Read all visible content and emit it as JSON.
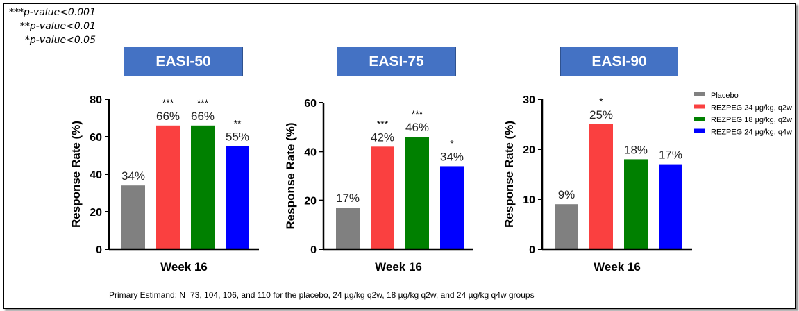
{
  "pvalue_notes": [
    "***p-value<0.001",
    "**p-value<0.01",
    "*p-value<0.05"
  ],
  "footnote": "Primary Estimand: N=73, 104, 106, and 110 for the placebo, 24 µg/kg q2w, 18 µg/kg q2w, and 24 µg/kg q4w groups",
  "legend": {
    "placement": "right",
    "items": [
      {
        "label": "Placebo",
        "color": "#808080"
      },
      {
        "label": "REZPEG 24 µg/kg, q2w",
        "color": "#fa4040"
      },
      {
        "label": "REZPEG 18 µg/kg, q2w",
        "color": "#008000"
      },
      {
        "label": "REZPEG 24 µg/kg, q4w",
        "color": "#0000ff"
      }
    ]
  },
  "chart_data": [
    {
      "type": "bar",
      "title": "EASI-50",
      "xlabel": "Week 16",
      "ylabel": "Response Rate (%)",
      "ylim": [
        0,
        80
      ],
      "yticks": [
        0,
        20,
        40,
        60,
        80
      ],
      "categories": [
        "Placebo",
        "REZPEG 24 µg/kg, q2w",
        "REZPEG 18 µg/kg, q2w",
        "REZPEG 24 µg/kg, q4w"
      ],
      "values": [
        34,
        66,
        66,
        55
      ],
      "data_labels": [
        "34%",
        "66%",
        "66%",
        "55%"
      ],
      "significance": [
        "",
        "***",
        "***",
        "**"
      ]
    },
    {
      "type": "bar",
      "title": "EASI-75",
      "xlabel": "Week 16",
      "ylabel": "Response Rate (%)",
      "ylim": [
        0,
        60
      ],
      "yticks": [
        0,
        20,
        40,
        60
      ],
      "categories": [
        "Placebo",
        "REZPEG 24 µg/kg, q2w",
        "REZPEG 18 µg/kg, q2w",
        "REZPEG 24 µg/kg, q4w"
      ],
      "values": [
        17,
        42,
        46,
        34
      ],
      "data_labels": [
        "17%",
        "42%",
        "46%",
        "34%"
      ],
      "significance": [
        "",
        "***",
        "***",
        "*"
      ]
    },
    {
      "type": "bar",
      "title": "EASI-90",
      "xlabel": "Week 16",
      "ylabel": "Response Rate (%)",
      "ylim": [
        0,
        30
      ],
      "yticks": [
        0,
        10,
        20,
        30
      ],
      "categories": [
        "Placebo",
        "REZPEG 24 µg/kg, q2w",
        "REZPEG 18 µg/kg, q2w",
        "REZPEG 24 µg/kg, q4w"
      ],
      "values": [
        9,
        25,
        18,
        17
      ],
      "data_labels": [
        "9%",
        "25%",
        "18%",
        "17%"
      ],
      "significance": [
        "",
        "*",
        "",
        ""
      ]
    }
  ]
}
